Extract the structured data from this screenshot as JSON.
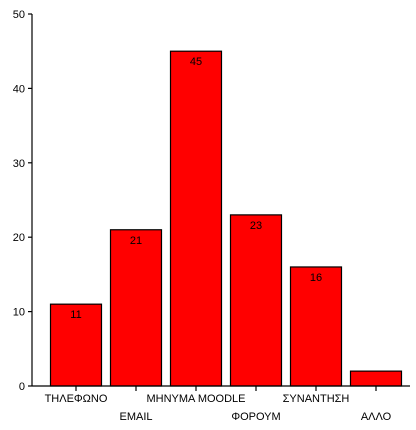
{
  "chart_data": {
    "type": "bar",
    "categories": [
      "ΤΗΛΕΦΩΝΟ",
      "EMAIL",
      "ΜΗΝΥΜΑ MOODLE",
      "ΦΟΡΟΥΜ",
      "ΣΥΝΑΝΤΗΣΗ",
      "ΑΛΛΟ"
    ],
    "values": [
      11,
      21,
      45,
      23,
      16,
      2
    ],
    "data_labels": [
      "11",
      "21",
      "45",
      "23",
      "16",
      ""
    ],
    "ylim": [
      0,
      50
    ],
    "yticks": [
      0,
      10,
      20,
      30,
      40,
      50
    ],
    "title": "",
    "xlabel": "",
    "ylabel": "",
    "grid": false,
    "bar_color": "#ff0000"
  }
}
